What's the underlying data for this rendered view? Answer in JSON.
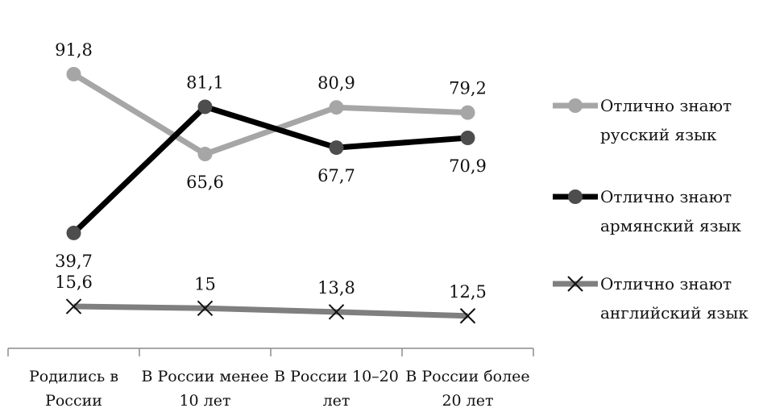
{
  "chart_data": {
    "type": "line",
    "title": "",
    "xlabel": "",
    "ylabel": "",
    "ylim": [
      0,
      100
    ],
    "grid": false,
    "legend_position": "right",
    "categories": [
      [
        "Родились в",
        "России"
      ],
      [
        "В России менее",
        "10 лет"
      ],
      [
        "В России 10–20",
        "лет"
      ],
      [
        "В России более",
        "20 лет"
      ]
    ],
    "series": [
      {
        "name": [
          "Отлично знают",
          "русский язык"
        ],
        "values": [
          91.8,
          65.6,
          80.9,
          79.2
        ],
        "labels": [
          "91,8",
          "65,6",
          "80,9",
          "79,2"
        ],
        "label_pos": [
          "above",
          "below",
          "above",
          "above"
        ],
        "color": "#a6a6a6",
        "marker": "circle",
        "width": 7
      },
      {
        "name": [
          "Отлично знают",
          "армянский язык"
        ],
        "values": [
          39.7,
          81.1,
          67.7,
          70.9
        ],
        "labels": [
          "39,7",
          "81,1",
          "67,7",
          "70,9"
        ],
        "label_pos": [
          "below",
          "above",
          "below",
          "below"
        ],
        "color": "#000000",
        "marker_color": "#4d4d4d",
        "marker": "circle",
        "width": 7
      },
      {
        "name": [
          "Отлично знают",
          "английский язык"
        ],
        "values": [
          15.6,
          15,
          13.8,
          12.5
        ],
        "labels": [
          "15,6",
          "15",
          "13,8",
          "12,5"
        ],
        "label_pos": [
          "above",
          "above",
          "above",
          "above"
        ],
        "color": "#7f7f7f",
        "marker": "x",
        "width": 7
      }
    ]
  }
}
